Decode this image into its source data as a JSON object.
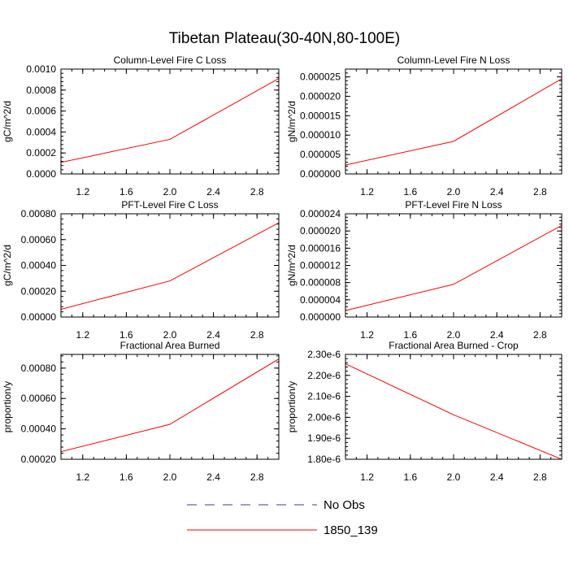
{
  "title": "Tibetan Plateau(30-40N,80-100E)",
  "colors": {
    "series_1850": "#ff0000",
    "no_obs": "#3a3aa8"
  },
  "legend": [
    {
      "label": "No Obs",
      "style": "dashed",
      "color": "#3a3aa8"
    },
    {
      "label": "1850_139",
      "style": "solid",
      "color": "#ff0000"
    }
  ],
  "chart_data": [
    {
      "type": "line",
      "title": "Column-Level Fire C Loss",
      "ylabel": "gC/m^2/d",
      "xlim": [
        1,
        3
      ],
      "ylim": [
        0,
        0.001
      ],
      "xticks": [
        "1.2",
        "1.6",
        "2.0",
        "2.4",
        "2.8"
      ],
      "xtick_values": [
        1.2,
        1.6,
        2.0,
        2.4,
        2.8
      ],
      "yticks": [
        "0.0000",
        "0.0002",
        "0.0004",
        "0.0006",
        "0.0008",
        "0.0010"
      ],
      "ytick_values": [
        0,
        0.0002,
        0.0004,
        0.0006,
        0.0008,
        0.001
      ],
      "series": [
        {
          "name": "1850_139",
          "x": [
            1,
            2,
            3
          ],
          "y": [
            0.00011,
            0.00033,
            0.00091
          ]
        }
      ]
    },
    {
      "type": "line",
      "title": "Column-Level Fire N Loss",
      "ylabel": "gN/m^2/d",
      "xlim": [
        1,
        3
      ],
      "ylim": [
        0,
        2.7e-05
      ],
      "xticks": [
        "1.2",
        "1.6",
        "2.0",
        "2.4",
        "2.8"
      ],
      "xtick_values": [
        1.2,
        1.6,
        2.0,
        2.4,
        2.8
      ],
      "yticks": [
        "0.000000",
        "0.000005",
        "0.000010",
        "0.000015",
        "0.000020",
        "0.000025"
      ],
      "ytick_values": [
        0,
        5e-06,
        1e-05,
        1.5e-05,
        2e-05,
        2.5e-05
      ],
      "series": [
        {
          "name": "1850_139",
          "x": [
            1,
            2,
            3
          ],
          "y": [
            2.3e-06,
            8.4e-06,
            2.45e-05
          ]
        }
      ]
    },
    {
      "type": "line",
      "title": "PFT-Level Fire C Loss",
      "ylabel": "gC/m^2/d",
      "xlim": [
        1,
        3
      ],
      "ylim": [
        0,
        0.0008
      ],
      "xticks": [
        "1.2",
        "1.6",
        "2.0",
        "2.4",
        "2.8"
      ],
      "xtick_values": [
        1.2,
        1.6,
        2.0,
        2.4,
        2.8
      ],
      "yticks": [
        "0.00000",
        "0.00020",
        "0.00040",
        "0.00060",
        "0.00080"
      ],
      "ytick_values": [
        0,
        0.0002,
        0.0004,
        0.0006,
        0.0008
      ],
      "series": [
        {
          "name": "1850_139",
          "x": [
            1,
            2,
            3
          ],
          "y": [
            6e-05,
            0.00028,
            0.00073
          ]
        }
      ]
    },
    {
      "type": "line",
      "title": "PFT-Level Fire N Loss",
      "ylabel": "gN/m^2/d",
      "xlim": [
        1,
        3
      ],
      "ylim": [
        0,
        2.4e-05
      ],
      "xticks": [
        "1.2",
        "1.6",
        "2.0",
        "2.4",
        "2.8"
      ],
      "xtick_values": [
        1.2,
        1.6,
        2.0,
        2.4,
        2.8
      ],
      "yticks": [
        "0.000000",
        "0.000004",
        "0.000008",
        "0.000012",
        "0.000016",
        "0.000020",
        "0.000024"
      ],
      "ytick_values": [
        0,
        4e-06,
        8e-06,
        1.2e-05,
        1.6e-05,
        2e-05,
        2.4e-05
      ],
      "series": [
        {
          "name": "1850_139",
          "x": [
            1,
            2,
            3
          ],
          "y": [
            1.5e-06,
            7.6e-06,
            2.13e-05
          ]
        }
      ]
    },
    {
      "type": "line",
      "title": "Fractional Area Burned",
      "ylabel": "proportion/y",
      "xlim": [
        1,
        3
      ],
      "ylim": [
        0.0002,
        0.00089
      ],
      "xticks": [
        "1.2",
        "1.6",
        "2.0",
        "2.4",
        "2.8"
      ],
      "xtick_values": [
        1.2,
        1.6,
        2.0,
        2.4,
        2.8
      ],
      "yticks": [
        "0.00020",
        "0.00040",
        "0.00060",
        "0.00080"
      ],
      "ytick_values": [
        0.0002,
        0.0004,
        0.0006,
        0.0008
      ],
      "series": [
        {
          "name": "1850_139",
          "x": [
            1,
            2,
            3
          ],
          "y": [
            0.00025,
            0.00043,
            0.00086
          ]
        }
      ]
    },
    {
      "type": "line",
      "title": "Fractional Area Burned - Crop",
      "ylabel": "proportion/y",
      "xlim": [
        1,
        3
      ],
      "ylim": [
        1.8e-06,
        2.3e-06
      ],
      "xticks": [
        "1.2",
        "1.6",
        "2.0",
        "2.4",
        "2.8"
      ],
      "xtick_values": [
        1.2,
        1.6,
        2.0,
        2.4,
        2.8
      ],
      "yticks": [
        "1.80e-6",
        "1.90e-6",
        "2.00e-6",
        "2.10e-6",
        "2.20e-6",
        "2.30e-6"
      ],
      "ytick_values": [
        1.8e-06,
        1.9e-06,
        2e-06,
        2.1e-06,
        2.2e-06,
        2.3e-06
      ],
      "series": [
        {
          "name": "1850_139",
          "x": [
            1,
            2,
            3
          ],
          "y": [
            2.255e-06,
            2.012e-06,
            1.8e-06
          ]
        }
      ]
    }
  ]
}
